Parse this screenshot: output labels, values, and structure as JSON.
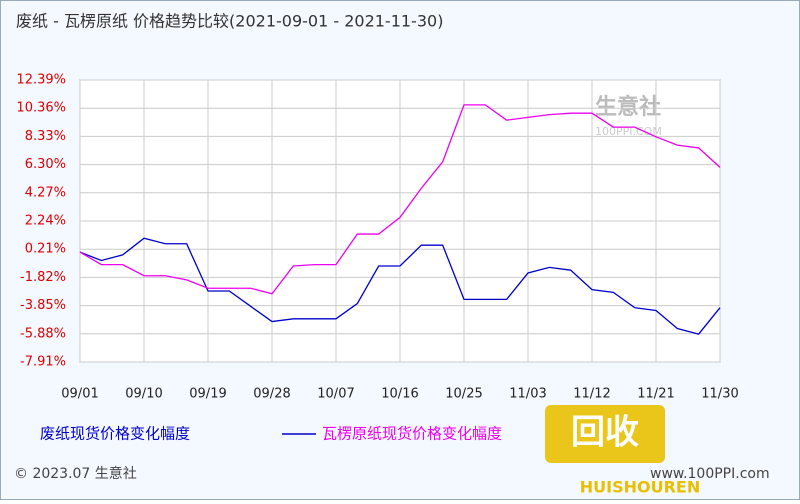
{
  "chart_data": {
    "type": "line",
    "title": "废纸 - 瓦楞原纸 价格趋势比较(2021-09-01 - 2021-11-30)",
    "categories": [
      "09/01",
      null,
      null,
      "09/10",
      null,
      null,
      "09/19",
      null,
      null,
      "09/28",
      null,
      null,
      "10/07",
      null,
      null,
      "10/16",
      null,
      null,
      "10/25",
      null,
      null,
      "11/03",
      null,
      null,
      "11/12",
      null,
      null,
      "11/21",
      null,
      null,
      "11/30"
    ],
    "series": [
      {
        "name": "废纸现货价格变化幅度",
        "color": "#0000cc",
        "values": [
          0,
          -0.6,
          -0.2,
          1.0,
          0.6,
          0.6,
          -2.8,
          -2.8,
          -3.9,
          -5.0,
          -4.8,
          -4.8,
          -4.8,
          -3.7,
          -1.0,
          -1.0,
          0.5,
          0.5,
          -3.4,
          -3.4,
          -3.4,
          -1.5,
          -1.1,
          -1.3,
          -2.7,
          -2.9,
          -4.0,
          -4.2,
          -5.5,
          -5.9,
          -4.0
        ]
      },
      {
        "name": "瓦楞原纸现货价格变化幅度",
        "color": "#ee00ee",
        "values": [
          0,
          -0.9,
          -0.9,
          -1.7,
          -1.7,
          -2.0,
          -2.6,
          -2.6,
          -2.6,
          -3.0,
          -1.0,
          -0.9,
          -0.9,
          1.3,
          1.3,
          2.5,
          4.6,
          6.5,
          10.6,
          10.6,
          9.5,
          9.7,
          9.9,
          10.0,
          10.0,
          9.0,
          9.0,
          8.3,
          7.7,
          7.5,
          6.1
        ]
      }
    ],
    "ylim": [
      -7.91,
      12.39
    ],
    "yticks": [
      {
        "value": 12.39,
        "label": "12.39%"
      },
      {
        "value": 10.36,
        "label": "10.36%"
      },
      {
        "value": 8.33,
        "label": "8.33%"
      },
      {
        "value": 6.3,
        "label": "6.30%"
      },
      {
        "value": 4.27,
        "label": "4.27%"
      },
      {
        "value": 2.24,
        "label": "2.24%"
      },
      {
        "value": 0.21,
        "label": "0.21%"
      },
      {
        "value": -1.82,
        "label": "-1.82%"
      },
      {
        "value": -3.85,
        "label": "-3.85%"
      },
      {
        "value": -5.88,
        "label": "-5.88%"
      },
      {
        "value": -7.91,
        "label": "-7.91%"
      }
    ],
    "grid": true,
    "watermark": [
      "生意社",
      "100PPI.COM"
    ],
    "footer": [
      "© 2023.07 生意社",
      "www.100PPI.com"
    ],
    "logo": [
      "回收",
      "HUISHOUREN"
    ]
  }
}
